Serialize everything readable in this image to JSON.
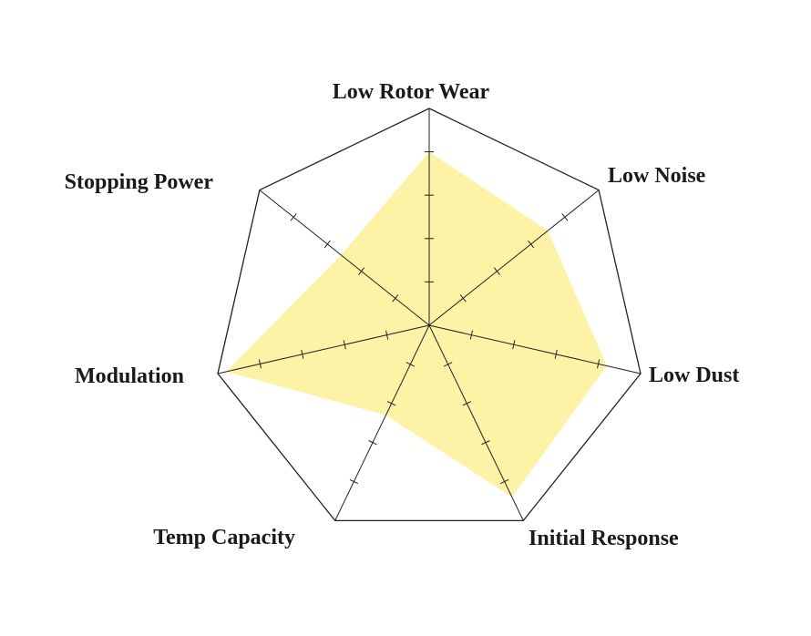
{
  "chart_data": {
    "type": "radar",
    "title": "",
    "axes": [
      "Low Rotor Wear",
      "Low Noise",
      "Low Dust",
      "Initial Response",
      "Temp Capacity",
      "Modulation",
      "Stopping Power"
    ],
    "max": 5,
    "ticks": [
      1,
      2,
      3,
      4
    ],
    "values": [
      4.0,
      3.5,
      4.2,
      4.4,
      2.3,
      4.8,
      2.6
    ],
    "fill_color": "#fcf3a6",
    "line_color": "#222222",
    "grid": false,
    "legend": "none"
  }
}
